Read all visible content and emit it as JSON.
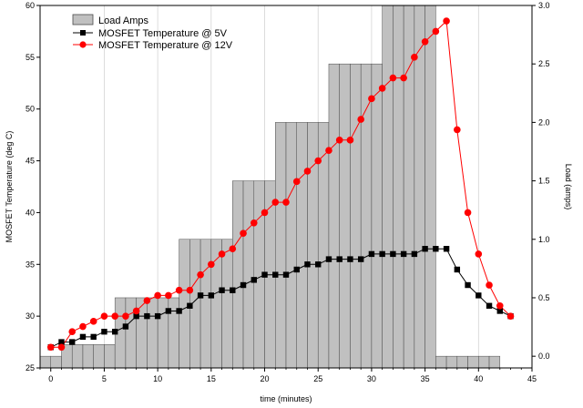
{
  "chart_data": {
    "type": "bar+line",
    "title": "",
    "xlabel": "time (minutes)",
    "ylabel_left": "MOSFET Temperature (deg C)",
    "ylabel_right": "Load (amps)",
    "xlim": [
      -1,
      45
    ],
    "ylim_left": [
      25,
      60
    ],
    "ylim_right": [
      -0.1,
      3.0
    ],
    "x_ticks": [
      0,
      5,
      10,
      15,
      20,
      25,
      30,
      35,
      40,
      45
    ],
    "y_left_ticks": [
      25,
      30,
      35,
      40,
      45,
      50,
      55,
      60
    ],
    "y_right_ticks": [
      0.0,
      0.5,
      1.0,
      1.5,
      2.0,
      2.5,
      3.0
    ],
    "x_tick_labels": [
      "0",
      "5",
      "10",
      "15",
      "20",
      "25",
      "30",
      "35",
      "40",
      "45"
    ],
    "y_left_tick_labels": [
      "25",
      "30",
      "35",
      "40",
      "45",
      "50",
      "55",
      "60"
    ],
    "y_right_tick_labels": [
      "0.0",
      "0.5",
      "1.0",
      "1.5",
      "2.0",
      "2.5",
      "3.0"
    ],
    "grid": true,
    "legend": {
      "position": "top-left",
      "entries": [
        "Load Amps",
        "MOSFET Temperature @ 5V",
        "MOSFET Temperature @ 12V"
      ]
    },
    "colors": {
      "bars": "#c0c0c0",
      "bar_edge": "#4a4a4a",
      "series_5v": "#000000",
      "series_12v": "#ff0000"
    },
    "load_amps": {
      "name": "Load Amps",
      "axis": "right",
      "x": [
        -1,
        0,
        1,
        2,
        3,
        4,
        5,
        6,
        7,
        8,
        9,
        10,
        11,
        12,
        13,
        14,
        15,
        16,
        17,
        18,
        19,
        20,
        21,
        22,
        23,
        24,
        25,
        26,
        27,
        28,
        29,
        30,
        31,
        32,
        33,
        34,
        35,
        36,
        37,
        38,
        39,
        40,
        41,
        42,
        43
      ],
      "values": [
        0.0,
        0.0,
        0.1,
        0.1,
        0.1,
        0.1,
        0.1,
        0.5,
        0.5,
        0.5,
        0.5,
        0.5,
        0.5,
        1.0,
        1.0,
        1.0,
        1.0,
        1.0,
        1.5,
        1.5,
        1.5,
        1.5,
        2.0,
        2.0,
        2.0,
        2.0,
        2.0,
        2.5,
        2.5,
        2.5,
        2.5,
        2.5,
        3.0,
        3.0,
        3.0,
        3.0,
        3.0,
        0.0,
        0.0,
        0.0,
        0.0,
        0.0,
        0.0,
        -0.1,
        -0.1
      ]
    },
    "series": [
      {
        "name": "MOSFET Temperature @ 5V",
        "axis": "left",
        "marker": "square",
        "x": [
          0,
          1,
          2,
          3,
          4,
          5,
          6,
          7,
          8,
          9,
          10,
          11,
          12,
          13,
          14,
          15,
          16,
          17,
          18,
          19,
          20,
          21,
          22,
          23,
          24,
          25,
          26,
          27,
          28,
          29,
          30,
          31,
          32,
          33,
          34,
          35,
          36,
          37,
          38,
          39,
          40,
          41,
          42,
          43
        ],
        "values": [
          27,
          27.5,
          27.5,
          28,
          28,
          28.5,
          28.5,
          29,
          30,
          30,
          30,
          30.5,
          30.5,
          31,
          32,
          32,
          32.5,
          32.5,
          33,
          33.5,
          34,
          34,
          34,
          34.5,
          35,
          35,
          35.5,
          35.5,
          35.5,
          35.5,
          36,
          36,
          36,
          36,
          36,
          36.5,
          36.5,
          36.5,
          34.5,
          33,
          32,
          31,
          30.5,
          30
        ]
      },
      {
        "name": "MOSFET Temperature @ 12V",
        "axis": "left",
        "marker": "circle",
        "x": [
          0,
          1,
          2,
          3,
          4,
          5,
          6,
          7,
          8,
          9,
          10,
          11,
          12,
          13,
          14,
          15,
          16,
          17,
          18,
          19,
          20,
          21,
          22,
          23,
          24,
          25,
          26,
          27,
          28,
          29,
          30,
          31,
          32,
          33,
          34,
          35,
          36,
          37,
          38,
          39,
          40,
          41,
          42,
          43
        ],
        "values": [
          27,
          27,
          28.5,
          29,
          29.5,
          30,
          30,
          30,
          30.5,
          31.5,
          32,
          32,
          32.5,
          32.5,
          34,
          35,
          36,
          36.5,
          38,
          39,
          40,
          41,
          41,
          43,
          44,
          45,
          46,
          47,
          47,
          49,
          51,
          52,
          53,
          53,
          55,
          56.5,
          57.5,
          58.5,
          48,
          40,
          36,
          33,
          31,
          30
        ]
      }
    ]
  }
}
